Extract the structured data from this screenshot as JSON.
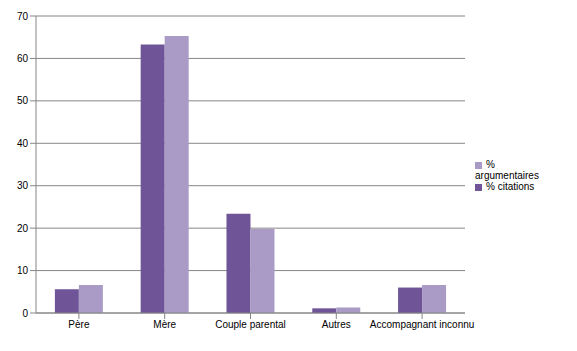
{
  "chart_data": {
    "type": "bar",
    "categories": [
      "Père",
      "Mère",
      "Couple parental",
      "Autres",
      "Accompagnant inconnu"
    ],
    "series": [
      {
        "name": "% citations",
        "color": "#6f5597",
        "values": [
          5.6,
          63.3,
          23.4,
          1.1,
          6.0
        ]
      },
      {
        "name": "% argumentaires",
        "color": "#a99bc6",
        "values": [
          6.6,
          65.3,
          19.8,
          1.3,
          6.6
        ]
      }
    ],
    "ylim": [
      0,
      70
    ],
    "yticks": [
      0,
      10,
      20,
      30,
      40,
      50,
      60,
      70
    ],
    "grid": true,
    "legend": "right"
  }
}
